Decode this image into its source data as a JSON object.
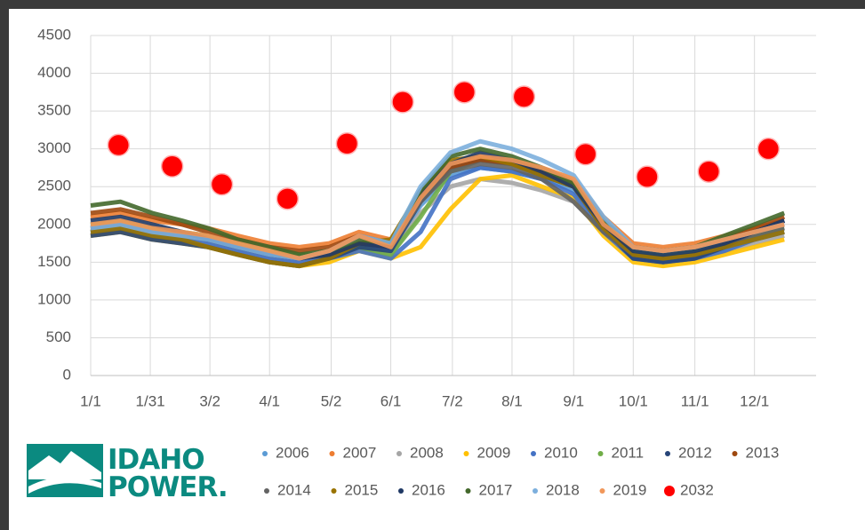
{
  "chart_data": {
    "type": "line",
    "x": [
      1,
      16,
      32,
      47,
      60,
      75,
      91,
      106,
      121,
      136,
      152,
      167,
      182,
      197,
      213,
      228,
      244,
      259,
      274,
      289,
      305,
      320,
      335,
      350
    ],
    "xlim": [
      1,
      366
    ],
    "xticks": [
      {
        "value": 1,
        "label": "1/1"
      },
      {
        "value": 31,
        "label": "1/31"
      },
      {
        "value": 61,
        "label": "3/2"
      },
      {
        "value": 91,
        "label": "4/1"
      },
      {
        "value": 122,
        "label": "5/2"
      },
      {
        "value": 152,
        "label": "6/1"
      },
      {
        "value": 183,
        "label": "7/2"
      },
      {
        "value": 213,
        "label": "8/1"
      },
      {
        "value": 244,
        "label": "9/1"
      },
      {
        "value": 274,
        "label": "10/1"
      },
      {
        "value": 305,
        "label": "11/1"
      },
      {
        "value": 335,
        "label": "12/1"
      }
    ],
    "ylim": [
      0,
      4500
    ],
    "yticks": [
      0,
      500,
      1000,
      1500,
      2000,
      2500,
      3000,
      3500,
      4000,
      4500
    ],
    "grid": true,
    "legend": "bottom",
    "series": [
      {
        "name": "2006",
        "color": "#5b9bd5",
        "values": [
          1950,
          2000,
          1900,
          1850,
          1800,
          1700,
          1600,
          1550,
          1600,
          1750,
          1650,
          2250,
          2650,
          2750,
          2700,
          2600,
          2450,
          1950,
          1600,
          1550,
          1600,
          1700,
          1800,
          1900
        ]
      },
      {
        "name": "2007",
        "color": "#ed7d31",
        "values": [
          2100,
          2150,
          2050,
          2000,
          1950,
          1850,
          1750,
          1700,
          1750,
          1900,
          1800,
          2400,
          2800,
          2900,
          2850,
          2750,
          2600,
          2100,
          1750,
          1700,
          1750,
          1850,
          1950,
          2050
        ]
      },
      {
        "name": "2008",
        "color": "#a5a5a5",
        "values": [
          1900,
          1950,
          1850,
          1800,
          1750,
          1650,
          1550,
          1500,
          1550,
          1700,
          1600,
          2150,
          2500,
          2600,
          2550,
          2450,
          2300,
          1900,
          1550,
          1500,
          1550,
          1650,
          1750,
          1850
        ]
      },
      {
        "name": "2009",
        "color": "#ffc000",
        "values": [
          1850,
          1900,
          1800,
          1750,
          1700,
          1600,
          1500,
          1450,
          1500,
          1650,
          1550,
          1700,
          2200,
          2600,
          2650,
          2500,
          2350,
          1850,
          1500,
          1450,
          1500,
          1600,
          1700,
          1800
        ]
      },
      {
        "name": "2010",
        "color": "#4472c4",
        "values": [
          1900,
          1950,
          1850,
          1800,
          1750,
          1650,
          1550,
          1500,
          1550,
          1650,
          1550,
          1900,
          2600,
          2750,
          2700,
          2600,
          2400,
          1900,
          1550,
          1500,
          1550,
          1650,
          1800,
          1900
        ]
      },
      {
        "name": "2011",
        "color": "#70ad47",
        "values": [
          2000,
          2050,
          1950,
          1900,
          1850,
          1750,
          1650,
          1600,
          1600,
          1700,
          1600,
          2100,
          2700,
          2850,
          2800,
          2700,
          2550,
          2000,
          1650,
          1600,
          1650,
          1750,
          1850,
          1950
        ]
      },
      {
        "name": "2012",
        "color": "#264478",
        "values": [
          1850,
          1900,
          1800,
          1750,
          1700,
          1600,
          1500,
          1450,
          1550,
          1700,
          1650,
          2300,
          2750,
          2850,
          2800,
          2650,
          2500,
          1950,
          1550,
          1500,
          1550,
          1700,
          1900,
          2050
        ]
      },
      {
        "name": "2013",
        "color": "#9e480e",
        "values": [
          2150,
          2200,
          2100,
          2000,
          1900,
          1800,
          1700,
          1650,
          1700,
          1850,
          1750,
          2350,
          2750,
          2850,
          2800,
          2700,
          2550,
          2050,
          1700,
          1650,
          1700,
          1800,
          1950,
          2100
        ]
      },
      {
        "name": "2014",
        "color": "#636363",
        "values": [
          1950,
          2000,
          1900,
          1850,
          1800,
          1700,
          1600,
          1550,
          1600,
          1750,
          1700,
          2300,
          2700,
          2800,
          2750,
          2600,
          2300,
          1900,
          1600,
          1550,
          1600,
          1750,
          1850,
          1950
        ]
      },
      {
        "name": "2015",
        "color": "#997300",
        "values": [
          1900,
          1950,
          1850,
          1800,
          1700,
          1600,
          1500,
          1450,
          1550,
          1750,
          1800,
          2450,
          2850,
          2900,
          2800,
          2650,
          2500,
          1950,
          1600,
          1550,
          1600,
          1700,
          1800,
          1900
        ]
      },
      {
        "name": "2016",
        "color": "#1f3864",
        "values": [
          2050,
          2100,
          2000,
          1900,
          1800,
          1700,
          1600,
          1550,
          1600,
          1750,
          1700,
          2400,
          2800,
          2950,
          2850,
          2700,
          2500,
          2000,
          1650,
          1600,
          1650,
          1750,
          1900,
          2050
        ]
      },
      {
        "name": "2017",
        "color": "#43682b",
        "values": [
          2250,
          2300,
          2150,
          2050,
          1950,
          1800,
          1700,
          1600,
          1650,
          1800,
          1750,
          2450,
          2900,
          3000,
          2900,
          2750,
          2550,
          2050,
          1700,
          1650,
          1700,
          1850,
          2000,
          2150
        ]
      },
      {
        "name": "2018",
        "color": "#7cafdd",
        "values": [
          1950,
          2000,
          1900,
          1850,
          1800,
          1700,
          1600,
          1550,
          1650,
          1850,
          1750,
          2500,
          2950,
          3100,
          3000,
          2850,
          2650,
          2100,
          1700,
          1650,
          1700,
          1800,
          1900,
          2000
        ]
      },
      {
        "name": "2019",
        "color": "#f1975a",
        "values": [
          2000,
          2050,
          1950,
          1900,
          1850,
          1750,
          1650,
          1550,
          1650,
          1850,
          1700,
          2350,
          2800,
          2900,
          2850,
          2750,
          2600,
          2000,
          1700,
          1650,
          1700,
          1800,
          1900,
          2000
        ]
      },
      {
        "name": "2032",
        "color": "#ff0000",
        "mode": "markers",
        "x": [
          15,
          42,
          67,
          100,
          130,
          158,
          189,
          219,
          250,
          281,
          312,
          342
        ],
        "values": [
          3050,
          2770,
          2530,
          2340,
          3070,
          3620,
          3750,
          3690,
          2930,
          2630,
          2700,
          3000
        ]
      }
    ]
  },
  "logo": {
    "line1": "IDAHO",
    "line2": "POWER."
  }
}
